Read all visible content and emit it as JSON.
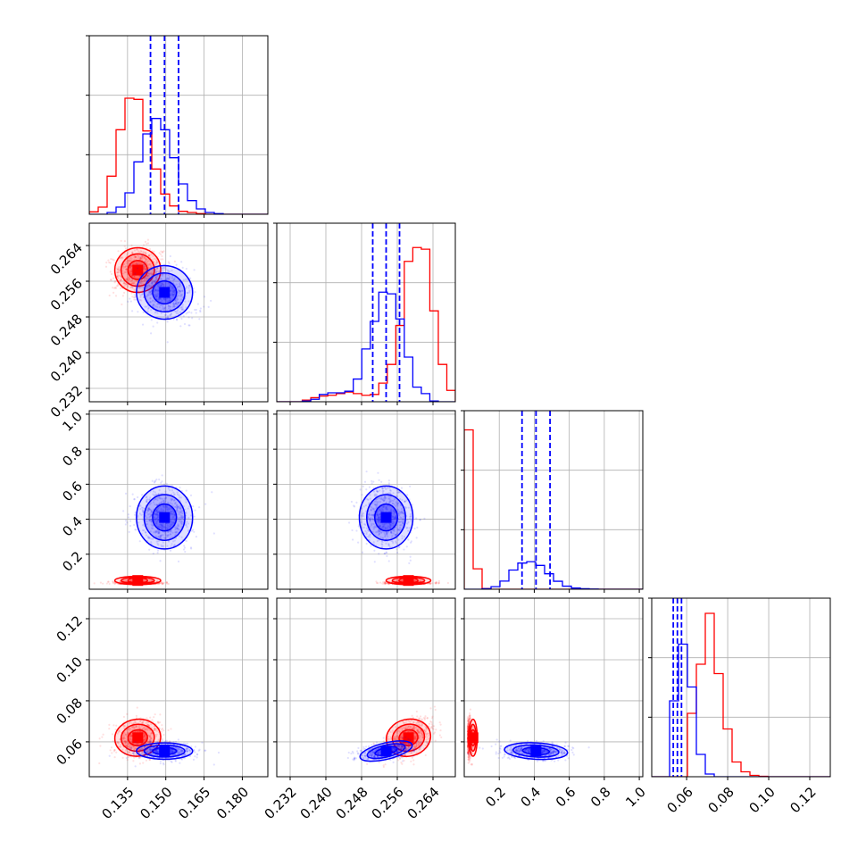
{
  "chart_data": {
    "type": "corner",
    "grid": true,
    "colors": {
      "red": "#ff0000",
      "blue": "#0000ff"
    },
    "parameters": [
      {
        "range": [
          0.12,
          0.19
        ],
        "ticks": [
          0.135,
          0.15,
          0.165,
          0.18
        ],
        "tick_labels": [
          "0.135",
          "0.150",
          "0.165",
          "0.180"
        ]
      },
      {
        "range": [
          0.229,
          0.269
        ],
        "ticks": [
          0.232,
          0.24,
          0.248,
          0.256,
          0.264
        ],
        "tick_labels": [
          "0.232",
          "0.240",
          "0.248",
          "0.256",
          "0.264"
        ]
      },
      {
        "range": [
          0.0,
          1.02
        ],
        "ticks": [
          0.2,
          0.4,
          0.6,
          0.8,
          1.0
        ],
        "tick_labels": [
          "0.2",
          "0.4",
          "0.6",
          "0.8",
          "1.0"
        ]
      },
      {
        "range": [
          0.043,
          0.13
        ],
        "ticks": [
          0.06,
          0.08,
          0.1,
          0.12
        ],
        "tick_labels": [
          "0.06",
          "0.08",
          "0.10",
          "0.12"
        ]
      }
    ],
    "quantiles_blue": [
      [
        0.144,
        0.1495,
        0.155
      ],
      [
        0.2505,
        0.2535,
        0.2565
      ],
      [
        0.33,
        0.41,
        0.49
      ],
      [
        0.0535,
        0.0555,
        0.0575
      ]
    ],
    "series": [
      {
        "color": "#ff0000",
        "means": [
          0.139,
          0.2585,
          0.05,
          0.062
        ],
        "sds": [
          0.0045,
          0.0025,
          0.012,
          0.0045
        ],
        "correlations": [
          [
            0,
            1,
            0.2
          ],
          [
            0,
            3,
            0.2
          ],
          [
            1,
            3,
            0.45
          ]
        ],
        "histograms": [
          [
            0.4,
            1.2,
            6.4,
            14.2,
            19.5,
            19.3,
            14.0,
            7.6,
            3.4,
            1.4,
            0.5,
            0.3,
            0.1,
            0,
            0,
            0,
            0,
            0,
            0,
            0
          ],
          [
            0,
            0,
            0,
            0.2,
            0.5,
            0.7,
            0.8,
            1.0,
            1.2,
            1.0,
            0.8,
            0.9,
            2.3,
            4.6,
            9.4,
            17.3,
            19.0,
            18.8,
            11.2,
            4.6,
            1.4
          ],
          [
            93.7,
            12.0,
            0.4,
            0,
            0,
            0,
            0,
            0,
            0,
            0,
            0,
            0,
            0,
            0,
            0,
            0,
            0,
            0,
            0,
            0
          ],
          [
            0,
            0,
            0,
            0,
            14.2,
            25.2,
            36.6,
            23.1,
            10.7,
            3.3,
            1.1,
            0.3,
            0.1,
            0,
            0,
            0,
            0,
            0,
            0,
            0
          ]
        ]
      },
      {
        "color": "#0000ff",
        "means": [
          0.1495,
          0.2535,
          0.41,
          0.0555
        ],
        "sds": [
          0.0055,
          0.003,
          0.09,
          0.002
        ],
        "correlations": [
          [
            0,
            1,
            -0.25
          ],
          [
            1,
            3,
            0.45
          ],
          [
            2,
            3,
            -0.1
          ]
        ],
        "histograms": [
          [
            0,
            0,
            0.3,
            1.2,
            3.6,
            8.8,
            13.5,
            16.1,
            14.2,
            9.5,
            5.1,
            2.3,
            0.9,
            0.3,
            0.1,
            0,
            0,
            0,
            0,
            0
          ],
          [
            0,
            0,
            0,
            0.1,
            0.3,
            0.9,
            1.1,
            1.1,
            1.3,
            2.8,
            6.5,
            9.9,
            13.5,
            13.3,
            10.2,
            5.5,
            1.8,
            1.0,
            0.1,
            0,
            0
          ],
          [
            0,
            0,
            0.3,
            1.5,
            4.8,
            11.3,
            15.4,
            16.2,
            14.0,
            9.1,
            4.7,
            1.8,
            0.7,
            0.3,
            0.1,
            0,
            0,
            0,
            0,
            0
          ],
          [
            0,
            0,
            17.0,
            29.7,
            20.1,
            5.0,
            0.6,
            0,
            0,
            0,
            0,
            0,
            0,
            0,
            0,
            0,
            0,
            0,
            0,
            0
          ]
        ]
      }
    ]
  }
}
